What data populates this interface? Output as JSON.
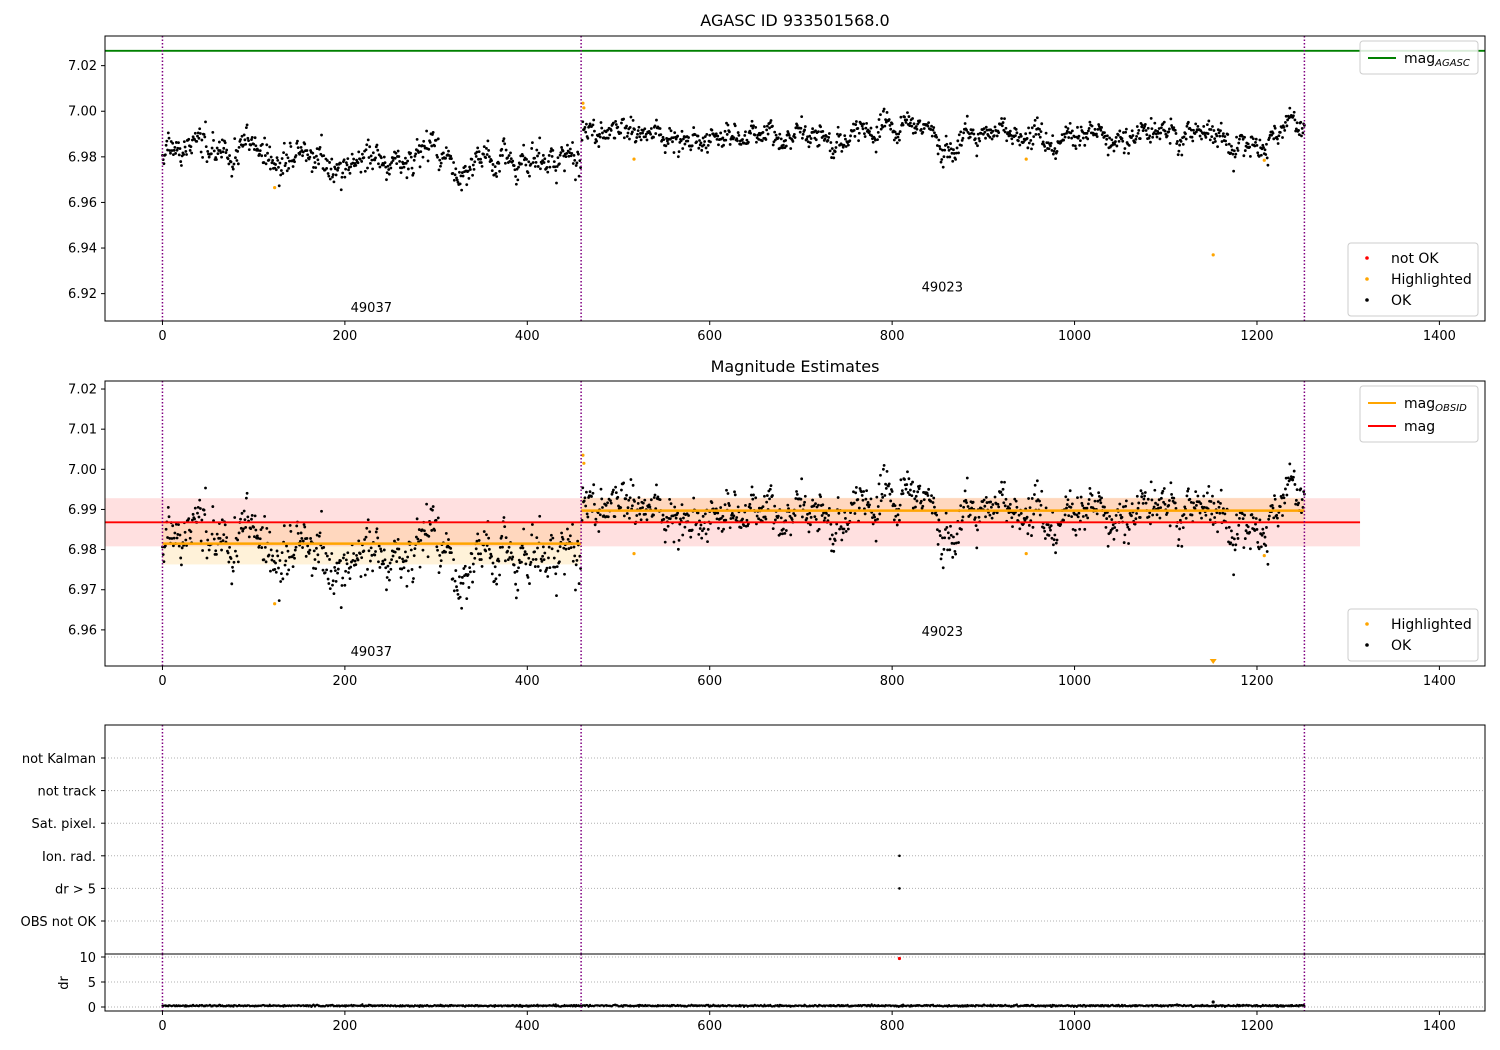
{
  "figure": {
    "title": "AGASC ID 933501568.0"
  },
  "chart_data": [
    {
      "type": "scatter",
      "title": "AGASC ID 933501568.0",
      "xlim": [
        -63,
        1450
      ],
      "ylim": [
        6.908,
        7.033
      ],
      "xticks": [
        0,
        200,
        400,
        600,
        800,
        1000,
        1200,
        1400
      ],
      "yticks": [
        6.92,
        6.94,
        6.96,
        6.98,
        7.0,
        7.02
      ],
      "ytick_decimals": 2,
      "vlines": [
        0,
        459,
        1252
      ],
      "obs_labels": [
        {
          "text": "49037",
          "x": 229,
          "y": 6.912
        },
        {
          "text": "49023",
          "x": 855,
          "y": 6.921
        }
      ],
      "hlines": [
        {
          "name": "mag_AGASC",
          "value": 7.0265,
          "color": "#008000"
        }
      ],
      "segments": [
        {
          "x": [
            0,
            459
          ],
          "mean": 6.9815,
          "sigma": 0.0052,
          "noise": 0.0045,
          "dip": {
            "x": [
              400,
              459
            ],
            "depth": 0.006
          }
        },
        {
          "x": [
            459,
            1252
          ],
          "mean": 6.9897,
          "sigma": 0.0032,
          "noise": 0.0035
        }
      ],
      "highlighted": [
        [
          123,
          6.9665
        ],
        [
          461,
          7.0035
        ],
        [
          462,
          7.0015
        ],
        [
          517,
          6.979
        ],
        [
          947,
          6.979
        ],
        [
          1152,
          6.937
        ],
        [
          1208,
          6.9785
        ]
      ],
      "legend_lines": [
        {
          "label": "mag",
          "sub": "AGASC",
          "color": "#008000"
        }
      ],
      "legend_points": [
        {
          "label": "not OK",
          "color": "#ff0000"
        },
        {
          "label": "Highlighted",
          "color": "#ffa500"
        },
        {
          "label": "OK",
          "color": "#000000"
        }
      ],
      "grid": false,
      "legend_placement": [
        "top-right",
        "bottom-right"
      ]
    },
    {
      "type": "scatter",
      "title": "Magnitude Estimates",
      "xlim": [
        -63,
        1450
      ],
      "ylim": [
        6.951,
        7.022
      ],
      "xticks": [
        0,
        200,
        400,
        600,
        800,
        1000,
        1200,
        1400
      ],
      "yticks": [
        6.96,
        6.97,
        6.98,
        6.99,
        7.0,
        7.01,
        7.02
      ],
      "ytick_decimals": 2,
      "vlines": [
        0,
        459,
        1252
      ],
      "obs_labels": [
        {
          "text": "49037",
          "x": 229,
          "y": 6.9535
        },
        {
          "text": "49023",
          "x": 855,
          "y": 6.9585
        }
      ],
      "mag": {
        "value": 6.9868,
        "band": [
          6.9808,
          6.9928
        ],
        "x": [
          -63,
          1313
        ],
        "color": "#ff0000"
      },
      "segments": [
        {
          "x": [
            0,
            459
          ],
          "mean": 6.9815,
          "sigma": 0.0052,
          "noise": 0.0045,
          "dip": {
            "x": [
              400,
              459
            ],
            "depth": 0.006
          }
        },
        {
          "x": [
            459,
            1252
          ],
          "mean": 6.9897,
          "sigma": 0.0032,
          "noise": 0.0035
        }
      ],
      "highlighted": [
        [
          123,
          6.9665
        ],
        [
          461,
          7.0035
        ],
        [
          462,
          7.0015
        ],
        [
          517,
          6.979
        ],
        [
          947,
          6.979
        ],
        [
          1208,
          6.9785
        ]
      ],
      "offscale_marker": {
        "x": 1152,
        "color": "#ffa500"
      },
      "legend_lines": [
        {
          "label": "mag",
          "sub": "OBSID",
          "color": "#ffa500"
        },
        {
          "label": "mag",
          "sub": "",
          "color": "#ff0000"
        }
      ],
      "legend_points": [
        {
          "label": "Highlighted",
          "color": "#ffa500"
        },
        {
          "label": "OK",
          "color": "#000000"
        }
      ],
      "grid": false,
      "legend_placement": [
        "top-right",
        "bottom-right"
      ]
    },
    {
      "type": "scatter",
      "title": "",
      "xlim": [
        -63,
        1450
      ],
      "categories": [
        "not Kalman",
        "not track",
        "Sat. pixel.",
        "Ion. rad.",
        "dr > 5",
        "OBS not OK"
      ],
      "flag_points": [
        {
          "category": "Ion. rad.",
          "x": 808
        },
        {
          "category": "dr > 5",
          "x": 808
        }
      ],
      "vlines": [
        0,
        459,
        1252
      ],
      "grid": true
    },
    {
      "type": "scatter",
      "title": "",
      "ylabel": "dr",
      "xlim": [
        -63,
        1450
      ],
      "ylim": [
        -0.8,
        10.6
      ],
      "xticks": [
        0,
        200,
        400,
        600,
        800,
        1000,
        1200,
        1400
      ],
      "yticks": [
        0,
        5,
        10
      ],
      "ytick_decimals": 0,
      "vlines": [
        0,
        459,
        1252
      ],
      "baseline": 0.25,
      "noise": 0.18,
      "outliers": [
        [
          808,
          9.7,
          "#ff0000"
        ],
        [
          1152,
          1.0,
          "#000000"
        ]
      ],
      "grid": true
    }
  ]
}
